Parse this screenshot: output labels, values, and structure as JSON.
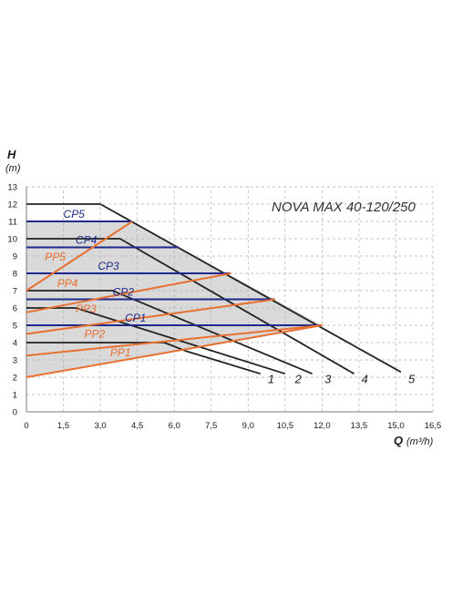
{
  "chart_data": {
    "type": "line",
    "title": "NOVA MAX 40-120/250",
    "xlabel": {
      "symbol": "Q",
      "unit": "(m³/h)"
    },
    "ylabel": {
      "symbol": "H",
      "unit": "(m)"
    },
    "xlim": [
      0,
      16.5
    ],
    "ylim": [
      0,
      13
    ],
    "xticks": [
      "0",
      "1,5",
      "3,0",
      "4,5",
      "6,0",
      "7,5",
      "9,0",
      "10,5",
      "12,0",
      "13,5",
      "15,0",
      "16,5"
    ],
    "yticks": [
      "0",
      "1",
      "2",
      "3",
      "4",
      "5",
      "6",
      "7",
      "8",
      "9",
      "10",
      "11",
      "12",
      "13"
    ],
    "grid": "dashed",
    "colors": {
      "speed": "#222222",
      "cp": "#1d2a8a",
      "pp": "#e87030",
      "region": "#d9d9d9"
    },
    "operating_region": [
      [
        0,
        11.0
      ],
      [
        4.3,
        11.0
      ],
      [
        12.0,
        5.0
      ],
      [
        0,
        2.0
      ]
    ],
    "speed_curves": [
      {
        "name": "1",
        "points": [
          [
            0,
            4.0
          ],
          [
            5.6,
            4.0
          ],
          [
            6.5,
            3.5
          ],
          [
            9.5,
            2.2
          ]
        ]
      },
      {
        "name": "2",
        "points": [
          [
            0,
            6.0
          ],
          [
            2.0,
            6.0
          ],
          [
            10.5,
            2.2
          ]
        ]
      },
      {
        "name": "3",
        "points": [
          [
            0,
            7.0
          ],
          [
            3.5,
            7.0
          ],
          [
            11.6,
            2.2
          ]
        ]
      },
      {
        "name": "4",
        "points": [
          [
            0,
            10.0
          ],
          [
            3.8,
            10.0
          ],
          [
            13.3,
            2.2
          ]
        ]
      },
      {
        "name": "5",
        "points": [
          [
            0,
            12.0
          ],
          [
            3.0,
            12.0
          ],
          [
            15.2,
            2.3
          ]
        ]
      }
    ],
    "cp_curves": [
      {
        "name": "CP1",
        "y": 5.0,
        "x": [
          0,
          12.0
        ]
      },
      {
        "name": "CP2",
        "y": 6.5,
        "x": [
          0,
          10.1
        ]
      },
      {
        "name": "CP3",
        "y": 8.0,
        "x": [
          0,
          8.3
        ]
      },
      {
        "name": "CP4",
        "y": 9.5,
        "x": [
          0,
          6.2
        ]
      },
      {
        "name": "CP5",
        "y": 11.0,
        "x": [
          0,
          4.3
        ]
      }
    ],
    "pp_curves": [
      {
        "name": "PP1",
        "points": [
          [
            0,
            2.0
          ],
          [
            12.0,
            5.0
          ]
        ]
      },
      {
        "name": "PP2",
        "points": [
          [
            0,
            3.25
          ],
          [
            12.0,
            5.0
          ]
        ]
      },
      {
        "name": "PP3",
        "points": [
          [
            0,
            4.5
          ],
          [
            10.1,
            6.5
          ]
        ]
      },
      {
        "name": "PP4",
        "points": [
          [
            0,
            5.75
          ],
          [
            8.3,
            8.0
          ]
        ]
      },
      {
        "name": "PP5",
        "points": [
          [
            0,
            7.0
          ],
          [
            4.3,
            11.0
          ]
        ]
      }
    ],
    "curve_labels": [
      {
        "name": "CP5",
        "x": 1.5,
        "y": 11.2,
        "kind": "cp"
      },
      {
        "name": "CP4",
        "x": 2.0,
        "y": 9.7,
        "kind": "cp"
      },
      {
        "name": "CP3",
        "x": 2.9,
        "y": 8.2,
        "kind": "cp"
      },
      {
        "name": "CP2",
        "x": 3.5,
        "y": 6.7,
        "kind": "cp"
      },
      {
        "name": "CP1",
        "x": 4.0,
        "y": 5.2,
        "kind": "cp"
      },
      {
        "name": "PP5",
        "x": 0.75,
        "y": 8.75,
        "kind": "pp"
      },
      {
        "name": "PP4",
        "x": 1.25,
        "y": 7.2,
        "kind": "pp"
      },
      {
        "name": "PP3",
        "x": 2.0,
        "y": 5.75,
        "kind": "pp"
      },
      {
        "name": "PP2",
        "x": 2.35,
        "y": 4.3,
        "kind": "pp"
      },
      {
        "name": "PP1",
        "x": 3.4,
        "y": 3.2,
        "kind": "pp"
      },
      {
        "name": "1",
        "x": 9.8,
        "y": 1.65,
        "kind": "speed"
      },
      {
        "name": "2",
        "x": 10.9,
        "y": 1.65,
        "kind": "speed"
      },
      {
        "name": "3",
        "x": 12.1,
        "y": 1.65,
        "kind": "speed"
      },
      {
        "name": "4",
        "x": 13.6,
        "y": 1.65,
        "kind": "speed"
      },
      {
        "name": "5",
        "x": 15.5,
        "y": 1.65,
        "kind": "speed"
      }
    ]
  }
}
